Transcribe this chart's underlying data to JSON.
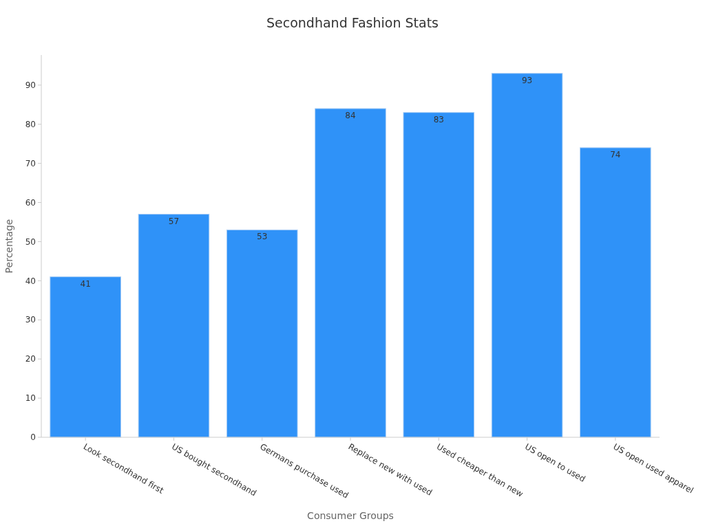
{
  "chart_data": {
    "type": "bar",
    "title": "Secondhand Fashion Stats",
    "xlabel": "Consumer Groups",
    "ylabel": "Percentage",
    "categories": [
      "Look secondhand first",
      "US bought secondhand",
      "Germans purchase used",
      "Replace new with used",
      "Used cheaper than new",
      "US open to used",
      "US open used apparel"
    ],
    "values": [
      41,
      57,
      53,
      84,
      83,
      93,
      74
    ],
    "color": "#2f92f8",
    "ylim": [
      0,
      97.7
    ],
    "yticks": [
      0,
      10,
      20,
      30,
      40,
      50,
      60,
      70,
      80,
      90
    ],
    "grid": false,
    "data_labels": true
  }
}
